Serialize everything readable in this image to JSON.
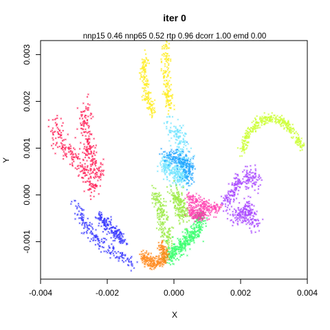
{
  "chart_data": {
    "type": "scatter",
    "title": "iter 0",
    "subtitle": "nnp15 0.46 nnp65 0.52 rtp 0.96 dcorr 1.00 emd 0.00",
    "xlabel": "X",
    "ylabel": "Y",
    "xlim": [
      -0.004,
      0.004
    ],
    "ylim": [
      -0.0018,
      0.0033
    ],
    "xticks": [
      -0.004,
      -0.002,
      0.0,
      0.002,
      0.004
    ],
    "xtick_labels": [
      "-0.004",
      "-0.002",
      "0.000",
      "0.002",
      "0.004"
    ],
    "yticks": [
      -0.001,
      0.0,
      0.001,
      0.002,
      0.003
    ],
    "ytick_labels": [
      "-0.001",
      "0.000",
      "0.001",
      "0.002",
      "0.003"
    ],
    "marker": "small cross",
    "grid": false,
    "legend": "none",
    "clusters": [
      {
        "color": "#ff0040",
        "paths": [
          [
            [
              -0.00355,
              0.00155
            ],
            [
              -0.00345,
              0.00115
            ],
            [
              -0.003,
              0.0008
            ],
            [
              -0.00265,
              0.00045
            ],
            [
              -0.00235,
              0.0001
            ]
          ],
          [
            [
              -0.00265,
              0.0019
            ],
            [
              -0.0027,
              0.0015
            ],
            [
              -0.0026,
              0.0011
            ],
            [
              -0.0024,
              0.0007
            ],
            [
              -0.0022,
              0.0004
            ]
          ]
        ],
        "n": 420,
        "spread": 0.00011
      },
      {
        "color": "#1a1aff",
        "paths": [
          [
            [
              -0.00295,
              -0.00015
            ],
            [
              -0.0027,
              -0.0006
            ],
            [
              -0.00225,
              -0.001
            ],
            [
              -0.00165,
              -0.0013
            ],
            [
              -0.00125,
              -0.00145
            ]
          ],
          [
            [
              -0.00225,
              -0.00045
            ],
            [
              -0.00185,
              -0.00075
            ],
            [
              -0.0015,
              -0.001
            ]
          ]
        ],
        "n": 360,
        "spread": 8e-05
      },
      {
        "color": "#ffea00",
        "paths": [
          [
            [
              -0.00085,
              0.00295
            ],
            [
              -0.0009,
              0.0025
            ],
            [
              -0.0008,
              0.0021
            ],
            [
              -0.0006,
              0.00175
            ]
          ],
          [
            [
              -0.00025,
              0.00325
            ],
            [
              -0.00025,
              0.0027
            ],
            [
              -0.0002,
              0.0022
            ],
            [
              -0.0001,
              0.0018
            ]
          ]
        ],
        "n": 320,
        "spread": 7e-05
      },
      {
        "color": "#5ee0ff",
        "paths": [
          [
            [
              -0.0002,
              0.0015
            ],
            [
              0.00015,
              0.0013
            ],
            [
              0.0003,
              0.00095
            ],
            [
              0.0002,
              0.0006
            ],
            [
              0.0001,
              0.0003
            ]
          ],
          [
            [
              -0.0003,
              0.0007
            ],
            [
              0.0,
              0.00045
            ],
            [
              0.00035,
              0.00035
            ]
          ]
        ],
        "n": 420,
        "spread": 0.00012
      },
      {
        "color": "#0d9bff",
        "paths": [
          [
            [
              -0.0002,
              0.00085
            ],
            [
              0.0002,
              0.00075
            ],
            [
              0.00045,
              0.00065
            ],
            [
              0.0004,
              0.0003
            ]
          ]
        ],
        "n": 240,
        "spread": 0.0001
      },
      {
        "color": "#8de82a",
        "paths": [
          [
            [
              -0.00055,
              5e-05
            ],
            [
              -0.0004,
              -0.0003
            ],
            [
              -0.0003,
              -0.0007
            ],
            [
              -0.00015,
              -0.001
            ]
          ],
          [
            [
              0.0,
              0.0001
            ],
            [
              0.0002,
              -0.0002
            ],
            [
              0.0003,
              -0.0005
            ]
          ]
        ],
        "n": 380,
        "spread": 0.0001
      },
      {
        "color": "#1fff5a",
        "paths": [
          [
            [
              -0.0002,
              -0.00135
            ],
            [
              0.0002,
              -0.0011
            ],
            [
              0.0005,
              -0.0009
            ],
            [
              0.00075,
              -0.0007
            ],
            [
              0.0008,
              -0.0004
            ]
          ]
        ],
        "n": 420,
        "spread": 0.0001
      },
      {
        "color": "#ff7a00",
        "paths": [
          [
            [
              -0.00095,
              -0.0013
            ],
            [
              -0.0007,
              -0.00145
            ],
            [
              -0.00045,
              -0.00145
            ],
            [
              -0.00025,
              -0.0013
            ],
            [
              -0.0004,
              -0.00105
            ]
          ]
        ],
        "n": 300,
        "spread": 7e-05
      },
      {
        "color": "#ff2aa8",
        "paths": [
          [
            [
              0.00045,
              -0.0001
            ],
            [
              0.0008,
              -0.0002
            ],
            [
              0.0011,
              -0.0003
            ],
            [
              0.00135,
              -0.00025
            ]
          ],
          [
            [
              0.0005,
              -0.00035
            ],
            [
              0.0009,
              -0.00045
            ]
          ]
        ],
        "n": 340,
        "spread": 8e-05
      },
      {
        "color": "#9b2bff",
        "paths": [
          [
            [
              0.0015,
              -0.0002
            ],
            [
              0.00175,
              5e-05
            ],
            [
              0.002,
              0.0003
            ],
            [
              0.0023,
              0.00045
            ],
            [
              0.0025,
              0.0002
            ]
          ],
          [
            [
              0.00175,
              -0.0004
            ],
            [
              0.00205,
              -0.0005
            ],
            [
              0.0022,
              -0.00025
            ],
            [
              0.00245,
              -0.00065
            ]
          ]
        ],
        "n": 420,
        "spread": 0.00011
      },
      {
        "color": "#c6ff1a",
        "paths": [
          [
            [
              0.00205,
              0.0009
            ],
            [
              0.0022,
              0.0013
            ],
            [
              0.0025,
              0.00155
            ],
            [
              0.00295,
              0.00165
            ],
            [
              0.0034,
              0.0015
            ],
            [
              0.00385,
              0.001
            ]
          ]
        ],
        "n": 360,
        "spread": 6e-05
      }
    ]
  }
}
